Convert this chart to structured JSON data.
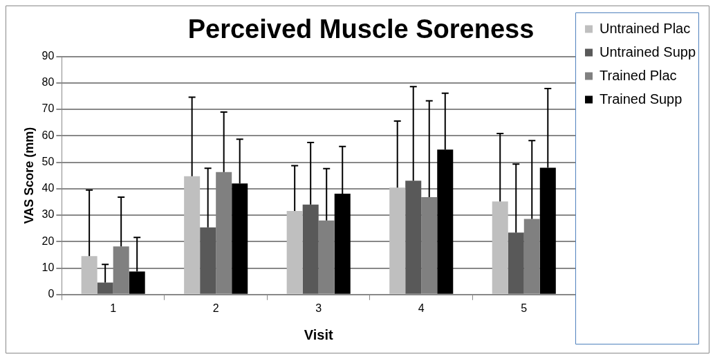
{
  "chart_data": {
    "type": "bar",
    "title": "Perceived Muscle Soreness",
    "xlabel": "Visit",
    "ylabel": "VAS Score (mm)",
    "categories": [
      "1",
      "2",
      "3",
      "4",
      "5"
    ],
    "series": [
      {
        "name": "Untrained Plac",
        "color": "#bfbfbf",
        "values": [
          14.5,
          44.7,
          31.6,
          40.4,
          35.2
        ],
        "errors": [
          [
            14.5,
            39.5
          ],
          [
            44.7,
            74.6
          ],
          [
            31.6,
            48.7
          ],
          [
            40.4,
            65.6
          ],
          [
            35.2,
            60.9
          ]
        ]
      },
      {
        "name": "Untrained Supp",
        "color": "#595959",
        "values": [
          4.5,
          25.4,
          34,
          43,
          23.4
        ],
        "errors": [
          [
            4.5,
            11.4
          ],
          [
            25.4,
            47.7
          ],
          [
            34,
            57.5
          ],
          [
            43,
            78.6
          ],
          [
            23.4,
            49.3
          ]
        ]
      },
      {
        "name": "Trained Plac",
        "color": "#808080",
        "values": [
          18.2,
          46.3,
          28,
          36.8,
          28.6
        ],
        "errors": [
          [
            18.2,
            36.8
          ],
          [
            46.3,
            69
          ],
          [
            28,
            47.6
          ],
          [
            36.8,
            73.2
          ],
          [
            28.6,
            58.2
          ]
        ]
      },
      {
        "name": "Trained Supp",
        "color": "#000000",
        "values": [
          8.7,
          42,
          38.1,
          54.8,
          47.9
        ],
        "errors": [
          [
            8.7,
            21.6
          ],
          [
            42,
            58.7
          ],
          [
            38.1,
            56
          ],
          [
            54.8,
            76.1
          ],
          [
            47.9,
            77.9
          ]
        ]
      }
    ],
    "ylim": [
      0,
      90
    ],
    "yticks": [
      0,
      10,
      20,
      30,
      40,
      50,
      60,
      70,
      80,
      90
    ],
    "grid": "y",
    "legend": "right"
  }
}
